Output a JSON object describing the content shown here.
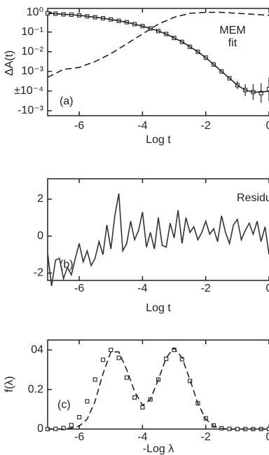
{
  "chart_data": [
    {
      "type": "line",
      "xlabel": "Log t",
      "ylabel": "ΔA(t)",
      "annotations": [
        "MEM",
        "fit",
        "(a)"
      ],
      "xlim": [
        -7,
        0
      ],
      "xticks": [
        -6,
        -4,
        -2,
        0
      ],
      "ylim": [
        -5.25,
        0.2
      ],
      "yticks": [
        {
          "value": 0,
          "label": "10⁰"
        },
        {
          "value": -1,
          "label": "10⁻¹"
        },
        {
          "value": -2,
          "label": "10⁻²"
        },
        {
          "value": -3,
          "label": "10⁻³"
        },
        {
          "value": -4,
          "label": "±10⁻⁴"
        },
        {
          "value": -5,
          "label": "-10⁻³"
        }
      ],
      "x": [
        -7,
        -6.75,
        -6.5,
        -6.25,
        -6,
        -5.75,
        -5.5,
        -5.25,
        -5,
        -4.75,
        -4.5,
        -4.25,
        -4,
        -3.75,
        -3.5,
        -3.25,
        -3,
        -2.75,
        -2.5,
        -2.25,
        -2,
        -1.75,
        -1.5,
        -1.25,
        -1,
        -0.75,
        -0.5,
        -0.25,
        0
      ],
      "series": [
        {
          "color": "#222",
          "marker": "square",
          "values": [
            -0.05,
            -0.07,
            -0.1,
            -0.12,
            -0.15,
            -0.2,
            -0.25,
            -0.3,
            -0.36,
            -0.43,
            -0.5,
            -0.6,
            -0.7,
            -0.82,
            -0.95,
            -1.1,
            -1.3,
            -1.5,
            -1.75,
            -2.0,
            -2.3,
            -2.65,
            -3.0,
            -3.35,
            -3.7,
            -3.95,
            -4.05,
            -4.1,
            -3.9
          ],
          "errors": [
            0,
            0,
            0,
            0,
            0,
            0,
            0,
            0,
            0,
            0,
            0,
            0,
            0,
            0,
            0,
            0,
            0,
            0,
            0,
            0,
            0,
            0,
            0,
            0.1,
            0.2,
            0.3,
            0.4,
            0.5,
            0.6
          ]
        },
        {
          "color": "#222",
          "line": "solid",
          "values": [
            -0.05,
            -0.07,
            -0.1,
            -0.12,
            -0.15,
            -0.2,
            -0.25,
            -0.3,
            -0.36,
            -0.43,
            -0.5,
            -0.6,
            -0.7,
            -0.82,
            -0.95,
            -1.1,
            -1.3,
            -1.5,
            -1.75,
            -2.0,
            -2.3,
            -2.65,
            -3.0,
            -3.35,
            -3.7,
            -3.95,
            -4.05,
            -4.05,
            -4.0
          ]
        },
        {
          "color": "#222",
          "line": "dashed",
          "x": [
            -7,
            -6.5,
            -6,
            -5.5,
            -5,
            -4.5,
            -4,
            -3.5,
            -3,
            -2.5,
            -2,
            -1.5,
            -1,
            -0.5,
            0
          ],
          "values": [
            -3.3,
            -2.9,
            -2.8,
            -2.5,
            -2.1,
            -1.6,
            -1.1,
            -0.6,
            -0.25,
            -0.05,
            0.0,
            0.0,
            -0.05,
            -0.1,
            -0.15
          ]
        }
      ]
    },
    {
      "type": "line",
      "xlabel": "Log t",
      "annotations": [
        "Residuals",
        "(b)"
      ],
      "xlim": [
        -7,
        0
      ],
      "xticks": [
        -6,
        -4,
        -2,
        0
      ],
      "ylim": [
        -2.4,
        3.1
      ],
      "yticks": [
        -2,
        0,
        2
      ],
      "x": [
        -7,
        -6.875,
        -6.75,
        -6.625,
        -6.5,
        -6.375,
        -6.25,
        -6.125,
        -6,
        -5.875,
        -5.75,
        -5.625,
        -5.5,
        -5.375,
        -5.25,
        -5.125,
        -5,
        -4.875,
        -4.75,
        -4.625,
        -4.5,
        -4.375,
        -4.25,
        -4.125,
        -4,
        -3.875,
        -3.75,
        -3.625,
        -3.5,
        -3.375,
        -3.25,
        -3.125,
        -3,
        -2.875,
        -2.75,
        -2.625,
        -2.5,
        -2.375,
        -2.25,
        -2.125,
        -2,
        -1.875,
        -1.75,
        -1.625,
        -1.5,
        -1.375,
        -1.25,
        -1.125,
        -1,
        -0.875,
        -0.75,
        -0.625,
        -0.5,
        -0.375,
        -0.25,
        -0.125,
        0
      ],
      "series": [
        {
          "color": "#333",
          "line": "solid",
          "values": [
            -0.9,
            -2.7,
            -1.3,
            -1.2,
            -2.3,
            -1.7,
            -2.1,
            -1.2,
            -0.4,
            -1.4,
            -0.8,
            -1.6,
            -1.2,
            -0.3,
            -1.0,
            0.6,
            -0.7,
            1.1,
            2.3,
            -0.8,
            -0.4,
            0.8,
            -0.2,
            0.3,
            1.3,
            -0.6,
            0.2,
            -0.7,
            1.0,
            -0.5,
            -0.6,
            0.7,
            -0.1,
            1.4,
            -0.4,
            1.0,
            0.2,
            0.5,
            -0.2,
            0.2,
            0.8,
            0.1,
            0.4,
            -0.3,
            1.1,
            0.2,
            -0.4,
            0.6,
            0.9,
            -0.2,
            0.3,
            0.7,
            0.1,
            0.8,
            -0.3,
            0.5,
            -1.0
          ]
        }
      ]
    },
    {
      "type": "line",
      "xlabel": "-Log λ",
      "ylabel": "f(λ)",
      "annotations": [
        "(c)"
      ],
      "xlim": [
        -7,
        0
      ],
      "xticks": [
        -6,
        -4,
        -2,
        0
      ],
      "ylim": [
        0,
        0.45
      ],
      "yticks": [
        0,
        0.2,
        {
          "value": 0.4,
          "label": "04"
        }
      ],
      "x": [
        -7,
        -6.75,
        -6.5,
        -6.25,
        -6,
        -5.75,
        -5.5,
        -5.25,
        -5,
        -4.75,
        -4.5,
        -4.25,
        -4,
        -3.75,
        -3.5,
        -3.25,
        -3,
        -2.75,
        -2.5,
        -2.25,
        -2,
        -1.75,
        -1.5,
        -1.25,
        -1,
        -0.75,
        -0.5,
        -0.25,
        0
      ],
      "series": [
        {
          "color": "#222",
          "marker": "square",
          "values": [
            0,
            0.001,
            0.005,
            0.02,
            0.06,
            0.14,
            0.25,
            0.35,
            0.4,
            0.36,
            0.26,
            0.16,
            0.11,
            0.15,
            0.25,
            0.355,
            0.4,
            0.353,
            0.243,
            0.13,
            0.054,
            0.018,
            0.004,
            0.001,
            0,
            0,
            0,
            0,
            0
          ]
        },
        {
          "color": "#222",
          "line": "dashed",
          "values": [
            0,
            0,
            0,
            0.005,
            0.015,
            0.05,
            0.14,
            0.28,
            0.39,
            0.39,
            0.3,
            0.19,
            0.12,
            0.15,
            0.25,
            0.36,
            0.41,
            0.36,
            0.25,
            0.13,
            0.05,
            0.015,
            0.003,
            0,
            0,
            0,
            0,
            0,
            0
          ]
        }
      ]
    }
  ]
}
